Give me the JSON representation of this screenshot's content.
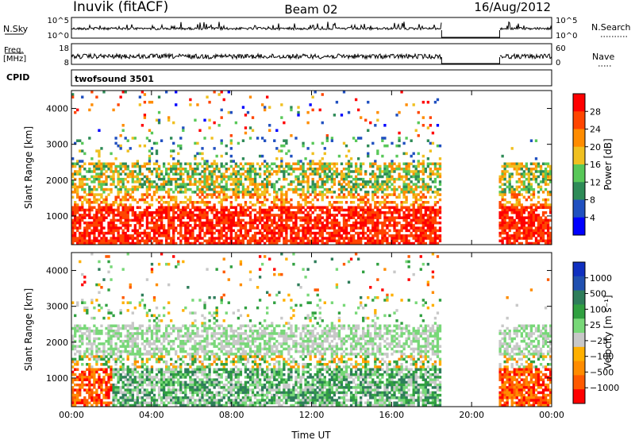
{
  "header": {
    "station": "Inuvik (fitACF)",
    "beam": "Beam 02",
    "date": "16/Aug/2012"
  },
  "strips": {
    "nsky": {
      "label": "N.Sky",
      "tick_top": "10^5",
      "tick_bottom": "10^0",
      "right_label": "N.Search",
      "right_tick_top": "10^5",
      "right_tick_bottom": "10^0"
    },
    "freq": {
      "label_1": "Freq.",
      "label_2": "[MHz]",
      "tick_top": "18",
      "tick_bottom": "8",
      "right_label": "Nave",
      "right_tick_top": "60",
      "right_tick_bottom": "0"
    },
    "cpid": {
      "label": "CPID",
      "value": "twofsound 3501"
    }
  },
  "colors": {
    "power": [
      "#0000ff",
      "#2050c0",
      "#2e8b57",
      "#58c858",
      "#f0c020",
      "#ff8c00",
      "#ff4500",
      "#ff0000"
    ],
    "velocity": [
      "#ff0000",
      "#ff5a00",
      "#ff8c00",
      "#ffb000",
      "#c8c8c8",
      "#78d878",
      "#30a040",
      "#2e7d5a",
      "#2050b0",
      "#1030c0"
    ]
  },
  "chart_data": [
    {
      "type": "heatmap",
      "name": "power",
      "ylabel": "Slant Range [km]",
      "xlabel": "",
      "x_range_hours": [
        0,
        24
      ],
      "y_range_km": [
        200,
        4500
      ],
      "x_ticks": [
        "00:00",
        "04:00",
        "08:00",
        "12:00",
        "16:00",
        "20:00",
        "00:00"
      ],
      "y_ticks": [
        1000,
        2000,
        3000,
        4000
      ],
      "data_gap_hours": [
        18.5,
        21.4
      ],
      "colorbar": {
        "label": "Power [dB]",
        "ticks": [
          "4",
          "8",
          "12",
          "16",
          "20",
          "24",
          "28"
        ]
      }
    },
    {
      "type": "heatmap",
      "name": "velocity",
      "ylabel": "Slant Range [km]",
      "xlabel": "Time UT",
      "x_range_hours": [
        0,
        24
      ],
      "y_range_km": [
        200,
        4500
      ],
      "x_ticks": [
        "00:00",
        "04:00",
        "08:00",
        "12:00",
        "16:00",
        "20:00",
        "00:00"
      ],
      "y_ticks": [
        1000,
        2000,
        3000,
        4000
      ],
      "data_gap_hours": [
        18.5,
        21.4
      ],
      "colorbar": {
        "label": "Velocity [m s⁻¹]",
        "ticks": [
          "1000",
          "500",
          "100",
          "25",
          "−25",
          "−100",
          "−500",
          "−1000"
        ]
      }
    }
  ]
}
